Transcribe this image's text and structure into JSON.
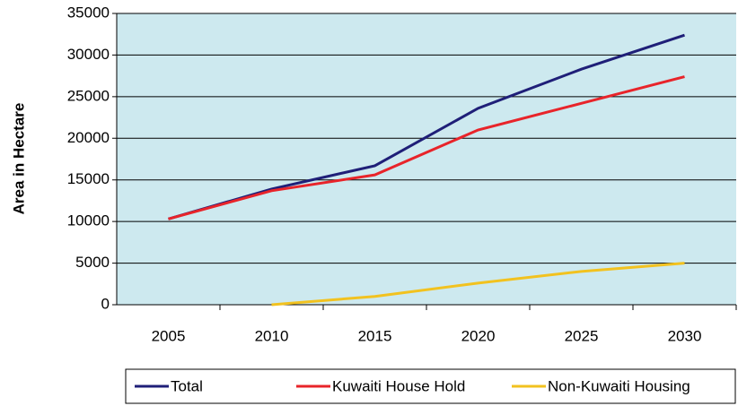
{
  "chart_data": {
    "type": "line",
    "ylabel": "Area in Hectare",
    "categories": [
      "2005",
      "2010",
      "2015",
      "2020",
      "2025",
      "2030"
    ],
    "series": [
      {
        "name": "Total",
        "color": "#1f1f78",
        "values": [
          10300,
          13900,
          16700,
          23600,
          28300,
          32400
        ]
      },
      {
        "name": "Kuwaiti House Hold",
        "color": "#e8242a",
        "values": [
          10300,
          13700,
          15600,
          21000,
          24200,
          27400
        ]
      },
      {
        "name": "Non-Kuwaiti Housing",
        "color": "#f2c21f",
        "values": [
          null,
          0,
          1000,
          2600,
          4000,
          5000
        ]
      }
    ],
    "ylim": [
      0,
      35000
    ],
    "yticks": [
      0,
      5000,
      10000,
      15000,
      20000,
      25000,
      30000,
      35000
    ],
    "grid": true,
    "legend": "bottom"
  }
}
